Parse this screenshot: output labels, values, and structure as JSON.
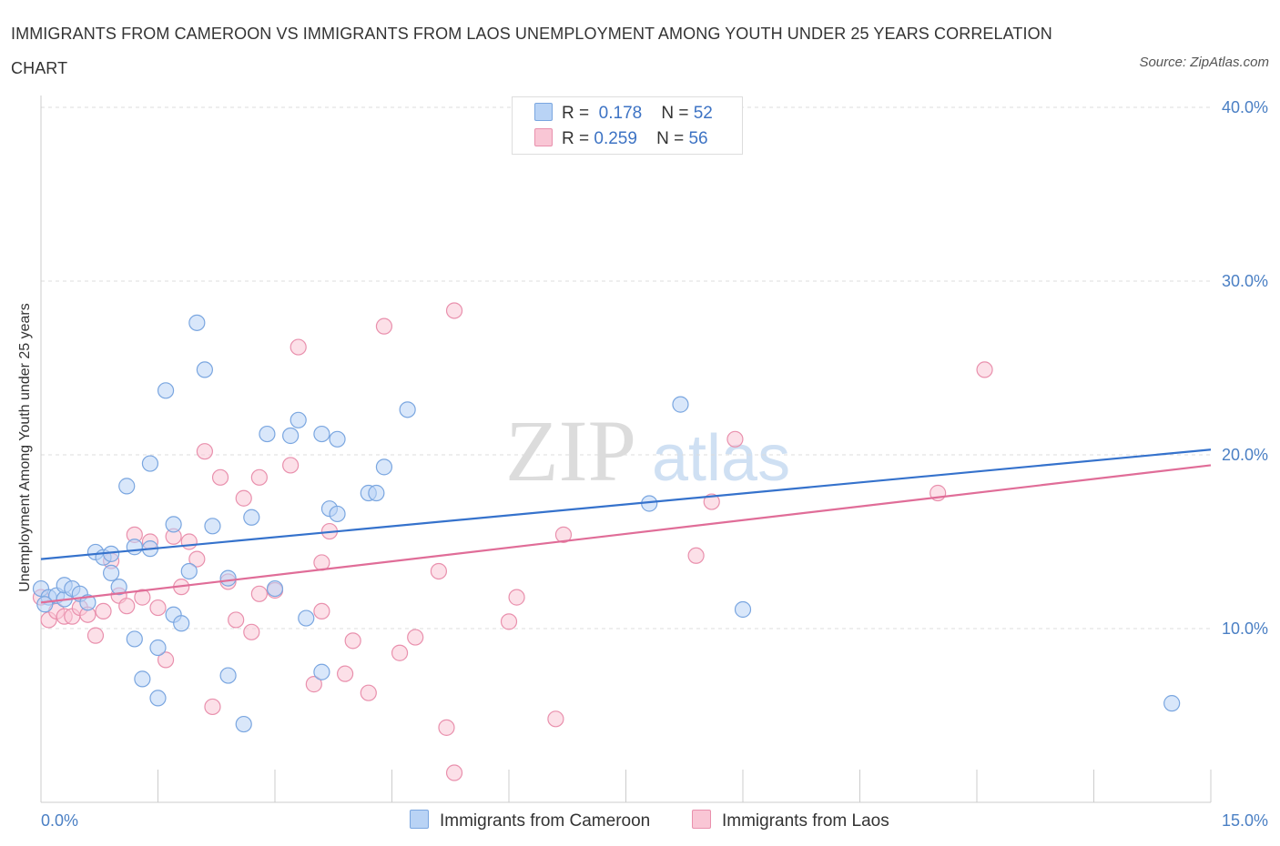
{
  "title": "IMMIGRANTS FROM CAMEROON VS IMMIGRANTS FROM LAOS UNEMPLOYMENT AMONG YOUTH UNDER 25 YEARS CORRELATION CHART",
  "source": "Source: ZipAtlas.com",
  "watermark": {
    "zip": "ZIP",
    "atlas": "atlas"
  },
  "legend_top": {
    "r_label": "R =",
    "n_label": "N =",
    "rows": [
      {
        "r": "0.178",
        "n": "52"
      },
      {
        "r": "0.259",
        "n": "56"
      }
    ]
  },
  "colors": {
    "cameroon_fill": "#b9d3f5",
    "cameroon_stroke": "#7aa6e0",
    "cameroon_line": "#3572cc",
    "laos_fill": "#f9c6d5",
    "laos_stroke": "#e990ad",
    "laos_line": "#e06d98",
    "tick_text": "#4a7fc4",
    "grid": "#dddddd"
  },
  "chart_data": {
    "type": "scatter",
    "title": "IMMIGRANTS FROM CAMEROON VS IMMIGRANTS FROM LAOS UNEMPLOYMENT AMONG YOUTH UNDER 25 YEARS CORRELATION CHART",
    "xlabel": "",
    "ylabel": "Unemployment Among Youth under 25 years",
    "xlim": [
      0,
      15
    ],
    "ylim": [
      0,
      40
    ],
    "x_tick_labels": [
      "0.0%",
      "15.0%"
    ],
    "y_ticks": [
      10,
      20,
      30,
      40
    ],
    "y_tick_labels": [
      "10.0%",
      "20.0%",
      "30.0%",
      "40.0%"
    ],
    "grid": true,
    "legend_position": "bottom",
    "series": [
      {
        "name": "Immigrants from Cameroon",
        "color": "#7aa6e0",
        "trend": {
          "x": [
            0,
            15
          ],
          "y": [
            14.0,
            20.3
          ]
        },
        "points": [
          [
            0.0,
            12.3
          ],
          [
            0.1,
            11.8
          ],
          [
            0.2,
            11.9
          ],
          [
            0.3,
            11.7
          ],
          [
            0.3,
            12.5
          ],
          [
            0.4,
            12.3
          ],
          [
            0.5,
            12.0
          ],
          [
            0.6,
            11.5
          ],
          [
            0.7,
            14.4
          ],
          [
            0.8,
            14.1
          ],
          [
            0.9,
            13.2
          ],
          [
            0.9,
            14.3
          ],
          [
            1.0,
            12.4
          ],
          [
            1.1,
            18.2
          ],
          [
            1.2,
            9.4
          ],
          [
            1.2,
            14.7
          ],
          [
            1.3,
            7.1
          ],
          [
            1.4,
            19.5
          ],
          [
            1.5,
            8.9
          ],
          [
            1.5,
            6.0
          ],
          [
            1.6,
            23.7
          ],
          [
            1.7,
            16.0
          ],
          [
            1.7,
            10.8
          ],
          [
            1.8,
            10.3
          ],
          [
            1.9,
            13.3
          ],
          [
            2.0,
            27.6
          ],
          [
            2.1,
            24.9
          ],
          [
            2.2,
            15.9
          ],
          [
            2.4,
            12.9
          ],
          [
            2.4,
            7.3
          ],
          [
            2.6,
            4.5
          ],
          [
            2.7,
            16.4
          ],
          [
            2.9,
            21.2
          ],
          [
            3.0,
            12.3
          ],
          [
            3.2,
            21.1
          ],
          [
            3.3,
            22.0
          ],
          [
            3.4,
            10.6
          ],
          [
            3.6,
            21.2
          ],
          [
            3.6,
            7.5
          ],
          [
            3.7,
            16.9
          ],
          [
            3.8,
            20.9
          ],
          [
            3.8,
            16.6
          ],
          [
            4.2,
            17.8
          ],
          [
            4.3,
            17.8
          ],
          [
            4.4,
            19.3
          ],
          [
            4.7,
            22.6
          ],
          [
            7.8,
            17.2
          ],
          [
            8.2,
            22.9
          ],
          [
            9.0,
            11.1
          ],
          [
            14.5,
            5.7
          ],
          [
            0.05,
            11.4
          ],
          [
            1.4,
            14.6
          ]
        ]
      },
      {
        "name": "Immigrants from Laos",
        "color": "#e990ad",
        "trend": {
          "x": [
            0,
            15
          ],
          "y": [
            11.5,
            19.4
          ]
        },
        "points": [
          [
            0.0,
            11.8
          ],
          [
            0.1,
            10.5
          ],
          [
            0.2,
            11.0
          ],
          [
            0.3,
            10.7
          ],
          [
            0.4,
            10.7
          ],
          [
            0.5,
            11.2
          ],
          [
            0.6,
            10.8
          ],
          [
            0.7,
            9.6
          ],
          [
            0.8,
            11.0
          ],
          [
            0.9,
            13.9
          ],
          [
            1.0,
            11.9
          ],
          [
            1.1,
            11.3
          ],
          [
            1.2,
            15.4
          ],
          [
            1.3,
            11.8
          ],
          [
            1.4,
            15.0
          ],
          [
            1.5,
            11.2
          ],
          [
            1.6,
            8.2
          ],
          [
            1.7,
            15.3
          ],
          [
            1.8,
            12.4
          ],
          [
            1.9,
            15.0
          ],
          [
            2.0,
            14.0
          ],
          [
            2.1,
            20.2
          ],
          [
            2.2,
            5.5
          ],
          [
            2.3,
            18.7
          ],
          [
            2.4,
            12.7
          ],
          [
            2.5,
            10.5
          ],
          [
            2.6,
            17.5
          ],
          [
            2.7,
            9.8
          ],
          [
            2.8,
            18.7
          ],
          [
            2.8,
            12.0
          ],
          [
            3.0,
            12.2
          ],
          [
            3.2,
            19.4
          ],
          [
            3.3,
            26.2
          ],
          [
            3.5,
            6.8
          ],
          [
            3.6,
            11.0
          ],
          [
            3.6,
            13.8
          ],
          [
            3.7,
            15.6
          ],
          [
            3.9,
            7.4
          ],
          [
            4.0,
            9.3
          ],
          [
            4.2,
            6.3
          ],
          [
            4.4,
            27.4
          ],
          [
            4.6,
            8.6
          ],
          [
            4.8,
            9.5
          ],
          [
            5.1,
            13.3
          ],
          [
            5.2,
            4.3
          ],
          [
            5.3,
            28.3
          ],
          [
            5.3,
            1.7
          ],
          [
            6.0,
            10.4
          ],
          [
            6.1,
            11.8
          ],
          [
            6.6,
            4.8
          ],
          [
            6.7,
            15.4
          ],
          [
            8.4,
            14.2
          ],
          [
            8.6,
            17.3
          ],
          [
            8.9,
            20.9
          ],
          [
            11.5,
            17.8
          ],
          [
            12.1,
            24.9
          ]
        ]
      }
    ]
  }
}
